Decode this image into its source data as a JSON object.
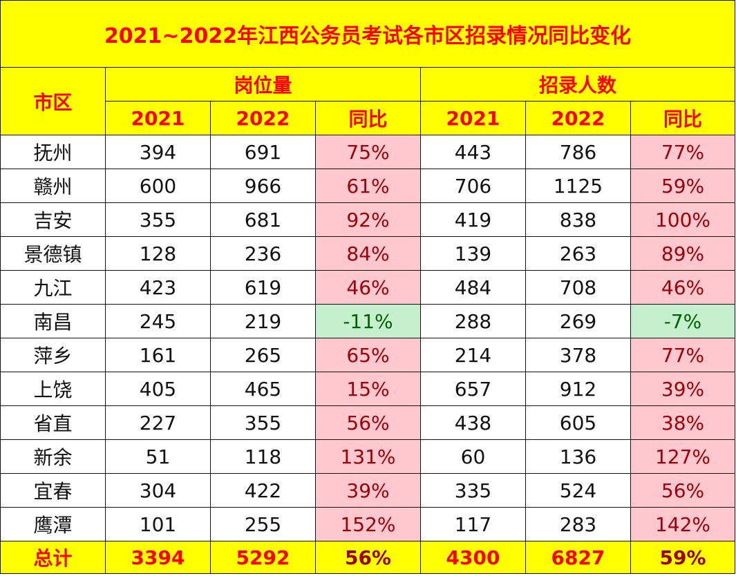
{
  "title": "2021~2022年江西公务员考试各市区招录情况同比变化",
  "headers": {
    "region": "市区",
    "positions": "岗位量",
    "recruits": "招录人数",
    "y2021": "2021",
    "y2022": "2022",
    "yoy": "同比"
  },
  "colors": {
    "header_bg": "#ffff00",
    "header_text": "#ff0000",
    "increase_bg": "#ffc7ce",
    "increase_text": "#9c0006",
    "decrease_bg": "#c6efce",
    "decrease_text": "#006100"
  },
  "rows": [
    {
      "city": "抚州",
      "pos2021": "394",
      "pos2022": "691",
      "pos_yoy": "75%",
      "rec2021": "443",
      "rec2022": "786",
      "rec_yoy": "77%"
    },
    {
      "city": "赣州",
      "pos2021": "600",
      "pos2022": "966",
      "pos_yoy": "61%",
      "rec2021": "706",
      "rec2022": "1125",
      "rec_yoy": "59%"
    },
    {
      "city": "吉安",
      "pos2021": "355",
      "pos2022": "681",
      "pos_yoy": "92%",
      "rec2021": "419",
      "rec2022": "838",
      "rec_yoy": "100%"
    },
    {
      "city": "景德镇",
      "pos2021": "128",
      "pos2022": "236",
      "pos_yoy": "84%",
      "rec2021": "139",
      "rec2022": "263",
      "rec_yoy": "89%"
    },
    {
      "city": "九江",
      "pos2021": "423",
      "pos2022": "619",
      "pos_yoy": "46%",
      "rec2021": "484",
      "rec2022": "708",
      "rec_yoy": "46%"
    },
    {
      "city": "南昌",
      "pos2021": "245",
      "pos2022": "219",
      "pos_yoy": "-11%",
      "rec2021": "288",
      "rec2022": "269",
      "rec_yoy": "-7%"
    },
    {
      "city": "萍乡",
      "pos2021": "161",
      "pos2022": "265",
      "pos_yoy": "65%",
      "rec2021": "214",
      "rec2022": "378",
      "rec_yoy": "77%"
    },
    {
      "city": "上饶",
      "pos2021": "405",
      "pos2022": "465",
      "pos_yoy": "15%",
      "rec2021": "657",
      "rec2022": "912",
      "rec_yoy": "39%"
    },
    {
      "city": "省直",
      "pos2021": "227",
      "pos2022": "355",
      "pos_yoy": "56%",
      "rec2021": "438",
      "rec2022": "605",
      "rec_yoy": "38%"
    },
    {
      "city": "新余",
      "pos2021": "51",
      "pos2022": "118",
      "pos_yoy": "131%",
      "rec2021": "60",
      "rec2022": "136",
      "rec_yoy": "127%"
    },
    {
      "city": "宜春",
      "pos2021": "304",
      "pos2022": "422",
      "pos_yoy": "39%",
      "rec2021": "335",
      "rec2022": "524",
      "rec_yoy": "56%"
    },
    {
      "city": "鹰潭",
      "pos2021": "101",
      "pos2022": "255",
      "pos_yoy": "152%",
      "rec2021": "117",
      "rec2022": "283",
      "rec_yoy": "142%"
    }
  ],
  "total": {
    "label": "总计",
    "pos2021": "3394",
    "pos2022": "5292",
    "pos_yoy": "56%",
    "rec2021": "4300",
    "rec2022": "6827",
    "rec_yoy": "59%"
  }
}
